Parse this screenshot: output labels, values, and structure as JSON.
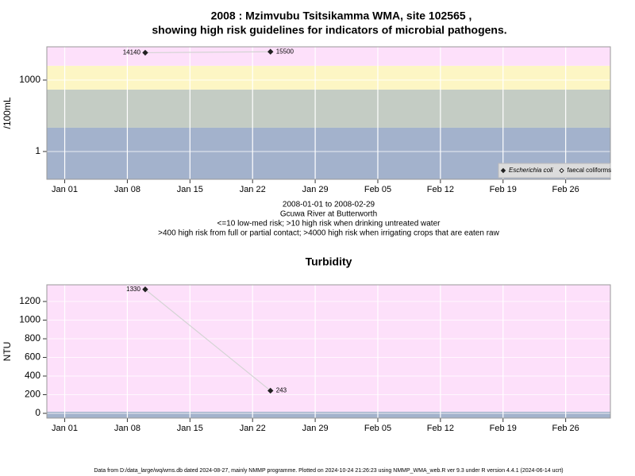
{
  "chart_data": [
    {
      "type": "line",
      "title": "2008 : Mzimvubu Tsitsikamma WMA, site 102565 ,",
      "subtitle": "showing high risk guidelines for indicators of microbial pathogens.",
      "ylabel": "/100mL",
      "log": true,
      "grid": true,
      "legend": "bottom-right",
      "x": [
        "2008-01-10",
        "2008-01-24"
      ],
      "xlim": [
        "2007-12-30",
        "2008-03-02"
      ],
      "xticks": [
        {
          "value": "2008-01-01",
          "label": "Jan 01"
        },
        {
          "value": "2008-01-08",
          "label": "Jan 08"
        },
        {
          "value": "2008-01-15",
          "label": "Jan 15"
        },
        {
          "value": "2008-01-22",
          "label": "Jan 22"
        },
        {
          "value": "2008-01-29",
          "label": "Jan 29"
        },
        {
          "value": "2008-02-05",
          "label": "Feb 05"
        },
        {
          "value": "2008-02-12",
          "label": "Feb 12"
        },
        {
          "value": "2008-02-19",
          "label": "Feb 19"
        },
        {
          "value": "2008-02-26",
          "label": "Feb 26"
        }
      ],
      "ylim": [
        0.068,
        25000
      ],
      "yticks": [
        1,
        1000
      ],
      "bands": [
        {
          "to": 10,
          "color": "#a3b2cc"
        },
        {
          "to": 400,
          "color": "#c4ccc4"
        },
        {
          "to": 4000,
          "color": "#fdf6c4"
        },
        {
          "color": "#fde0fa"
        }
      ],
      "series": [
        {
          "name": "Escherichia coli",
          "color": "#222222",
          "marker": "filled",
          "values": [
            14140,
            15500
          ]
        },
        {
          "name": "faecal coliforms",
          "color": "#222222",
          "marker": "open",
          "values": [
            null,
            null
          ]
        }
      ],
      "notes": [
        "2008-01-01 to 2008-02-29",
        "Gcuwa River at Butterworth",
        "<=10 low-med risk; >10 high risk when drinking untreated water",
        ">400 high risk from full or partial contact; >4000 high risk when irrigating crops that are eaten raw"
      ]
    },
    {
      "type": "line",
      "title": "Turbidity",
      "ylabel": "NTU",
      "log": false,
      "grid": true,
      "x": [
        "2008-01-10",
        "2008-01-24"
      ],
      "xlim": [
        "2007-12-30",
        "2008-03-02"
      ],
      "xticks": [
        {
          "value": "2008-01-01",
          "label": "Jan 01"
        },
        {
          "value": "2008-01-08",
          "label": "Jan 08"
        },
        {
          "value": "2008-01-15",
          "label": "Jan 15"
        },
        {
          "value": "2008-01-22",
          "label": "Jan 22"
        },
        {
          "value": "2008-01-29",
          "label": "Jan 29"
        },
        {
          "value": "2008-02-05",
          "label": "Feb 05"
        },
        {
          "value": "2008-02-12",
          "label": "Feb 12"
        },
        {
          "value": "2008-02-19",
          "label": "Feb 19"
        },
        {
          "value": "2008-02-26",
          "label": "Feb 26"
        }
      ],
      "ylim": [
        -51,
        1379
      ],
      "yticks": [
        0,
        200,
        400,
        600,
        800,
        1000,
        1200
      ],
      "bands": [
        {
          "to": 17,
          "color": "#a3b2cc"
        },
        {
          "color": "#fde0fa"
        }
      ],
      "series": [
        {
          "name": "Turbidity",
          "color": "#222222",
          "marker": "filled",
          "values": [
            1330,
            243
          ]
        }
      ]
    }
  ],
  "footer": "Data from D:/data_large/wq/wms.db dated 2024-08-27, mainly NMMP programme. Plotted on 2024-10-24 21:26:23 using NMMP_WMA_web.R ver 9.3 under R version 4.4.1 (2024-06-14 ucrt)"
}
